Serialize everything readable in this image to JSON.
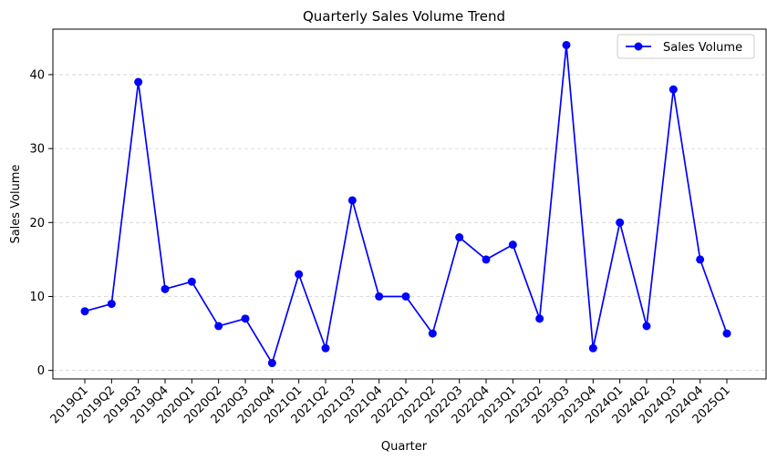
{
  "chart_data": {
    "type": "line",
    "title": "Quarterly Sales Volume Trend",
    "xlabel": "Quarter",
    "ylabel": "Sales Volume",
    "categories": [
      "2019Q1",
      "2019Q2",
      "2019Q3",
      "2019Q4",
      "2020Q1",
      "2020Q2",
      "2020Q3",
      "2020Q4",
      "2021Q1",
      "2021Q2",
      "2021Q3",
      "2021Q4",
      "2022Q1",
      "2022Q2",
      "2022Q3",
      "2022Q4",
      "2023Q1",
      "2023Q2",
      "2023Q3",
      "2023Q4",
      "2024Q1",
      "2024Q2",
      "2024Q3",
      "2024Q4",
      "2025Q1"
    ],
    "series": [
      {
        "name": "Sales Volume",
        "color": "#0000ff",
        "marker": "circle",
        "values": [
          8,
          9,
          39,
          11,
          12,
          6,
          7,
          1,
          13,
          3,
          23,
          10,
          10,
          5,
          18,
          15,
          17,
          7,
          44,
          3,
          20,
          6,
          38,
          15,
          5
        ]
      }
    ],
    "ylim": [
      -1.15,
      46.15
    ],
    "yticks": [
      0,
      10,
      20,
      30,
      40
    ],
    "grid": "y-dashed",
    "legend_position": "top-right",
    "x_tick_rotation": 45
  }
}
